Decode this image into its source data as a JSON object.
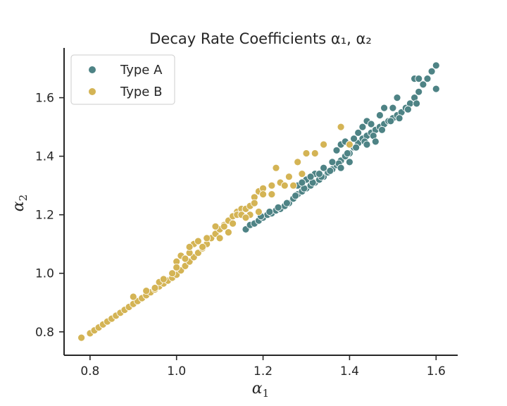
{
  "chart_data": {
    "type": "scatter",
    "title": "Decay Rate Coefficients α₁, α₂",
    "xlabel": "α₁",
    "ylabel": "α₂",
    "xlim": [
      0.74,
      1.65
    ],
    "ylim": [
      0.72,
      1.77
    ],
    "xticks": [
      "0.8",
      "1.0",
      "1.2",
      "1.4",
      "1.6"
    ],
    "yticks": [
      "0.8",
      "1.0",
      "1.2",
      "1.4",
      "1.6"
    ],
    "legend": {
      "location": "upper-left"
    },
    "grid": false,
    "series": [
      {
        "name": "Type A",
        "color": "#4e8385",
        "points": [
          [
            1.16,
            1.15
          ],
          [
            1.17,
            1.165
          ],
          [
            1.18,
            1.17
          ],
          [
            1.19,
            1.18
          ],
          [
            1.2,
            1.19
          ],
          [
            1.21,
            1.2
          ],
          [
            1.22,
            1.205
          ],
          [
            1.23,
            1.215
          ],
          [
            1.24,
            1.22
          ],
          [
            1.25,
            1.23
          ],
          [
            1.26,
            1.24
          ],
          [
            1.27,
            1.255
          ],
          [
            1.28,
            1.27
          ],
          [
            1.29,
            1.28
          ],
          [
            1.3,
            1.29
          ],
          [
            1.31,
            1.3
          ],
          [
            1.32,
            1.31
          ],
          [
            1.33,
            1.32
          ],
          [
            1.34,
            1.33
          ],
          [
            1.35,
            1.345
          ],
          [
            1.36,
            1.355
          ],
          [
            1.37,
            1.37
          ],
          [
            1.38,
            1.385
          ],
          [
            1.39,
            1.4
          ],
          [
            1.4,
            1.41
          ],
          [
            1.41,
            1.43
          ],
          [
            1.42,
            1.445
          ],
          [
            1.43,
            1.46
          ],
          [
            1.44,
            1.47
          ],
          [
            1.45,
            1.48
          ],
          [
            1.46,
            1.49
          ],
          [
            1.47,
            1.5
          ],
          [
            1.48,
            1.51
          ],
          [
            1.49,
            1.52
          ],
          [
            1.5,
            1.53
          ],
          [
            1.51,
            1.54
          ],
          [
            1.52,
            1.55
          ],
          [
            1.53,
            1.565
          ],
          [
            1.54,
            1.58
          ],
          [
            1.55,
            1.6
          ],
          [
            1.56,
            1.62
          ],
          [
            1.57,
            1.645
          ],
          [
            1.58,
            1.665
          ],
          [
            1.59,
            1.69
          ],
          [
            1.6,
            1.71
          ],
          [
            1.195,
            1.195
          ],
          [
            1.215,
            1.21
          ],
          [
            1.235,
            1.225
          ],
          [
            1.255,
            1.24
          ],
          [
            1.275,
            1.265
          ],
          [
            1.295,
            1.29
          ],
          [
            1.315,
            1.31
          ],
          [
            1.335,
            1.33
          ],
          [
            1.355,
            1.35
          ],
          [
            1.375,
            1.375
          ],
          [
            1.395,
            1.41
          ],
          [
            1.415,
            1.43
          ],
          [
            1.435,
            1.45
          ],
          [
            1.455,
            1.47
          ],
          [
            1.475,
            1.49
          ],
          [
            1.495,
            1.52
          ],
          [
            1.515,
            1.53
          ],
          [
            1.535,
            1.56
          ],
          [
            1.555,
            1.58
          ],
          [
            1.28,
            1.3
          ],
          [
            1.3,
            1.32
          ],
          [
            1.32,
            1.34
          ],
          [
            1.34,
            1.36
          ],
          [
            1.36,
            1.38
          ],
          [
            1.37,
            1.42
          ],
          [
            1.38,
            1.44
          ],
          [
            1.39,
            1.45
          ],
          [
            1.4,
            1.44
          ],
          [
            1.41,
            1.46
          ],
          [
            1.42,
            1.48
          ],
          [
            1.43,
            1.5
          ],
          [
            1.44,
            1.52
          ],
          [
            1.45,
            1.51
          ],
          [
            1.47,
            1.54
          ],
          [
            1.48,
            1.565
          ],
          [
            1.5,
            1.565
          ],
          [
            1.51,
            1.6
          ],
          [
            1.55,
            1.665
          ],
          [
            1.56,
            1.665
          ],
          [
            1.6,
            1.63
          ],
          [
            1.46,
            1.45
          ],
          [
            1.44,
            1.44
          ],
          [
            1.4,
            1.38
          ],
          [
            1.38,
            1.36
          ],
          [
            1.33,
            1.34
          ],
          [
            1.31,
            1.33
          ],
          [
            1.29,
            1.31
          ]
        ]
      },
      {
        "name": "Type B",
        "color": "#d4b455",
        "points": [
          [
            0.78,
            0.78
          ],
          [
            0.8,
            0.795
          ],
          [
            0.81,
            0.805
          ],
          [
            0.82,
            0.815
          ],
          [
            0.83,
            0.825
          ],
          [
            0.84,
            0.835
          ],
          [
            0.85,
            0.845
          ],
          [
            0.86,
            0.855
          ],
          [
            0.87,
            0.865
          ],
          [
            0.88,
            0.875
          ],
          [
            0.89,
            0.885
          ],
          [
            0.9,
            0.895
          ],
          [
            0.91,
            0.905
          ],
          [
            0.92,
            0.915
          ],
          [
            0.93,
            0.925
          ],
          [
            0.94,
            0.935
          ],
          [
            0.95,
            0.945
          ],
          [
            0.96,
            0.955
          ],
          [
            0.97,
            0.965
          ],
          [
            0.98,
            0.975
          ],
          [
            0.99,
            0.985
          ],
          [
            1.0,
            0.995
          ],
          [
            1.01,
            1.01
          ],
          [
            1.02,
            1.025
          ],
          [
            1.03,
            1.04
          ],
          [
            1.04,
            1.055
          ],
          [
            1.05,
            1.07
          ],
          [
            1.06,
            1.085
          ],
          [
            1.07,
            1.1
          ],
          [
            1.08,
            1.12
          ],
          [
            1.09,
            1.135
          ],
          [
            1.1,
            1.15
          ],
          [
            1.11,
            1.165
          ],
          [
            1.12,
            1.18
          ],
          [
            1.13,
            1.195
          ],
          [
            1.14,
            1.21
          ],
          [
            1.15,
            1.22
          ],
          [
            1.16,
            1.22
          ],
          [
            1.17,
            1.23
          ],
          [
            1.18,
            1.26
          ],
          [
            1.19,
            1.28
          ],
          [
            1.2,
            1.29
          ],
          [
            1.22,
            1.3
          ],
          [
            1.24,
            1.31
          ],
          [
            1.26,
            1.33
          ],
          [
            1.28,
            1.38
          ],
          [
            1.3,
            1.41
          ],
          [
            1.32,
            1.41
          ],
          [
            1.34,
            1.44
          ],
          [
            1.38,
            1.5
          ],
          [
            1.4,
            1.44
          ],
          [
            0.9,
            0.92
          ],
          [
            0.93,
            0.94
          ],
          [
            0.96,
            0.97
          ],
          [
            0.99,
            1.0
          ],
          [
            1.0,
            1.04
          ],
          [
            1.01,
            1.06
          ],
          [
            1.02,
            1.05
          ],
          [
            1.03,
            1.07
          ],
          [
            1.04,
            1.1
          ],
          [
            1.05,
            1.11
          ],
          [
            1.07,
            1.12
          ],
          [
            1.09,
            1.16
          ],
          [
            1.1,
            1.12
          ],
          [
            1.11,
            1.16
          ],
          [
            1.12,
            1.14
          ],
          [
            1.13,
            1.17
          ],
          [
            1.14,
            1.2
          ],
          [
            1.15,
            1.2
          ],
          [
            1.17,
            1.2
          ],
          [
            1.18,
            1.24
          ],
          [
            1.2,
            1.27
          ],
          [
            1.22,
            1.27
          ],
          [
            1.23,
            1.36
          ],
          [
            1.25,
            1.3
          ],
          [
            1.27,
            1.3
          ],
          [
            1.29,
            1.34
          ],
          [
            1.03,
            1.09
          ],
          [
            1.06,
            1.09
          ],
          [
            0.97,
            0.98
          ],
          [
            0.95,
            0.95
          ],
          [
            1.0,
            1.02
          ],
          [
            1.16,
            1.19
          ],
          [
            1.19,
            1.21
          ]
        ]
      }
    ]
  }
}
